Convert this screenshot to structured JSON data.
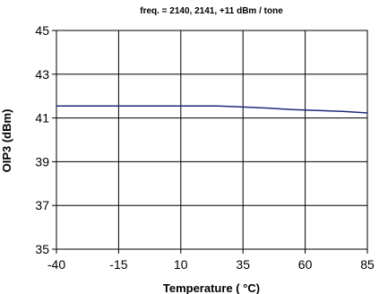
{
  "chart_data": {
    "type": "line",
    "title": "freq. = 2140, 2141, +11 dBm / tone",
    "xlabel": "Temperature ( °C)",
    "ylabel": "OIP3 (dBm)",
    "xlim": [
      -40,
      85
    ],
    "ylim": [
      35,
      45
    ],
    "x_ticks": [
      "-40",
      "-15",
      "10",
      "35",
      "60",
      "85"
    ],
    "y_ticks": [
      "45",
      "43",
      "41",
      "39",
      "37",
      "35"
    ],
    "grid": true,
    "series": [
      {
        "color": "#1f2a7a",
        "x": [
          -40,
          -15,
          10,
          25,
          35,
          45,
          55,
          65,
          75,
          85
        ],
        "y": [
          41.55,
          41.55,
          41.55,
          41.55,
          41.5,
          41.45,
          41.38,
          41.34,
          41.3,
          41.23
        ]
      }
    ]
  }
}
